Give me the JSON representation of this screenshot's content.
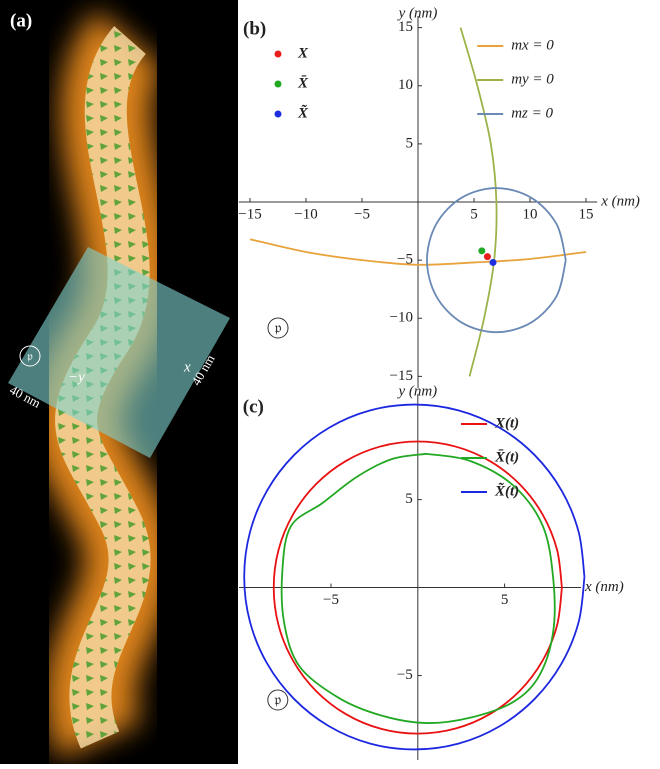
{
  "panel_a": {
    "label": "(a)",
    "plane_label": "𝔭",
    "axis_y": "−y",
    "axis_x": "x",
    "size_left": "40 nm",
    "size_right": "40 nm"
  },
  "chart_data": [
    {
      "type": "line",
      "label": "(b)",
      "annotation": "𝔭",
      "xlabel": "x (nm)",
      "ylabel": "y (nm)",
      "xlim": [
        -16,
        16
      ],
      "ylim": [
        -16,
        16
      ],
      "xticks": [
        {
          "value": -15,
          "label": "−15"
        },
        {
          "value": -10,
          "label": "−10"
        },
        {
          "value": -5,
          "label": "−5"
        },
        5,
        10,
        15
      ],
      "yticks": [
        {
          "value": -15,
          "label": "−15"
        },
        {
          "value": -10,
          "label": "−10"
        },
        {
          "value": -5,
          "label": "−5"
        },
        5,
        10,
        15
      ],
      "series": [
        {
          "name": "mx = 0",
          "color": "#e8a33c",
          "x": [
            -15,
            -10,
            -5,
            0,
            5,
            10,
            15
          ],
          "values": [
            -3.2,
            -4.3,
            -5.0,
            -5.4,
            -5.2,
            -4.9,
            -4.3
          ]
        },
        {
          "name": "my = 0",
          "color": "#9cb34a",
          "x": [
            3.8,
            5.3,
            6.5,
            7.0,
            6.8,
            5.9,
            4.6
          ],
          "values": [
            15,
            10,
            5,
            0,
            -5,
            -10,
            -15
          ]
        },
        {
          "name": "mz = 0",
          "color": "#6a8ab5",
          "x": [
            13.2,
            12.37,
            10.1,
            7,
            3.9,
            1.63,
            0.8,
            1.63,
            3.9,
            7,
            10.1,
            12.37,
            13.2
          ],
          "values": [
            -5,
            -1.9,
            0.37,
            1.2,
            0.37,
            -1.9,
            -5,
            -8.1,
            -10.37,
            -11.2,
            -10.37,
            -8.1,
            -5
          ]
        }
      ],
      "points": [
        {
          "name": "X",
          "color": "#e8201c",
          "x": [
            6.2
          ],
          "values": [
            -4.7
          ]
        },
        {
          "name": "X̄",
          "color": "#22a822",
          "x": [
            5.7
          ],
          "values": [
            -4.2
          ]
        },
        {
          "name": "X̃",
          "color": "#1c2ee0",
          "x": [
            6.7
          ],
          "values": [
            -5.2
          ]
        }
      ]
    },
    {
      "type": "line",
      "label": "(c)",
      "annotation": "𝔭",
      "xlabel": "x (nm)",
      "ylabel": "y (nm)",
      "xlim": [
        -10.3,
        9.4
      ],
      "ylim": [
        -9.8,
        11
      ],
      "xticks": [
        {
          "value": -5,
          "label": "−5"
        },
        5
      ],
      "yticks": [
        {
          "value": -5,
          "label": "−5"
        },
        5
      ],
      "series": [
        {
          "name": "X(t)",
          "color": "#e81010",
          "x": [
            8.3,
            8.02,
            7.19,
            5.87,
            4.15,
            2.15,
            0,
            -2.15,
            -4.15,
            -5.87,
            -7.19,
            -8.02,
            -8.3,
            -8.02,
            -7.19,
            -5.87,
            -4.15,
            -2.15,
            0,
            2.15,
            4.15,
            5.87,
            7.19,
            8.02,
            8.3
          ],
          "values": [
            0,
            2.15,
            4.15,
            5.87,
            7.19,
            8.02,
            8.3,
            8.02,
            7.19,
            5.87,
            4.15,
            2.15,
            0,
            -2.15,
            -4.15,
            -5.87,
            -7.19,
            -8.02,
            -8.3,
            -8.02,
            -7.19,
            -5.87,
            -4.15,
            -2.15,
            0
          ]
        },
        {
          "name": "X̄(t)",
          "color": "#22a822",
          "x": [
            0.5,
            3,
            5.5,
            7.2,
            7.8,
            7.8,
            7.0,
            5.5,
            3,
            0.5,
            -2,
            -4.5,
            -6.8,
            -7.7,
            -7.8,
            -7.3,
            -5.5,
            -3.5,
            -1.5,
            0.5
          ],
          "values": [
            7.6,
            7.2,
            5.8,
            3.5,
            0.5,
            -2.5,
            -5.0,
            -6.5,
            -7.4,
            -7.7,
            -7.3,
            -6.3,
            -4.5,
            -2,
            1,
            3.5,
            4.8,
            6.3,
            7.3,
            7.6
          ]
        },
        {
          "name": "X̃(t)",
          "color": "#1c28e0",
          "x": [
            9.6,
            9.27,
            8.29,
            6.73,
            4.7,
            2.34,
            -0.2,
            -2.74,
            -5.1,
            -7.13,
            -8.69,
            -9.67,
            -10.0,
            -9.67,
            -8.69,
            -7.13,
            -5.1,
            -2.74,
            -0.2,
            2.34,
            4.7,
            6.73,
            8.29,
            9.27,
            9.6
          ],
          "values": [
            0.6,
            3.14,
            5.5,
            7.53,
            9.09,
            10.07,
            10.4,
            10.07,
            9.09,
            7.53,
            5.5,
            3.14,
            0.6,
            -1.94,
            -4.3,
            -6.33,
            -7.89,
            -8.87,
            -9.2,
            -8.87,
            -7.89,
            -6.33,
            -4.3,
            -1.94,
            0.6
          ]
        }
      ]
    }
  ]
}
